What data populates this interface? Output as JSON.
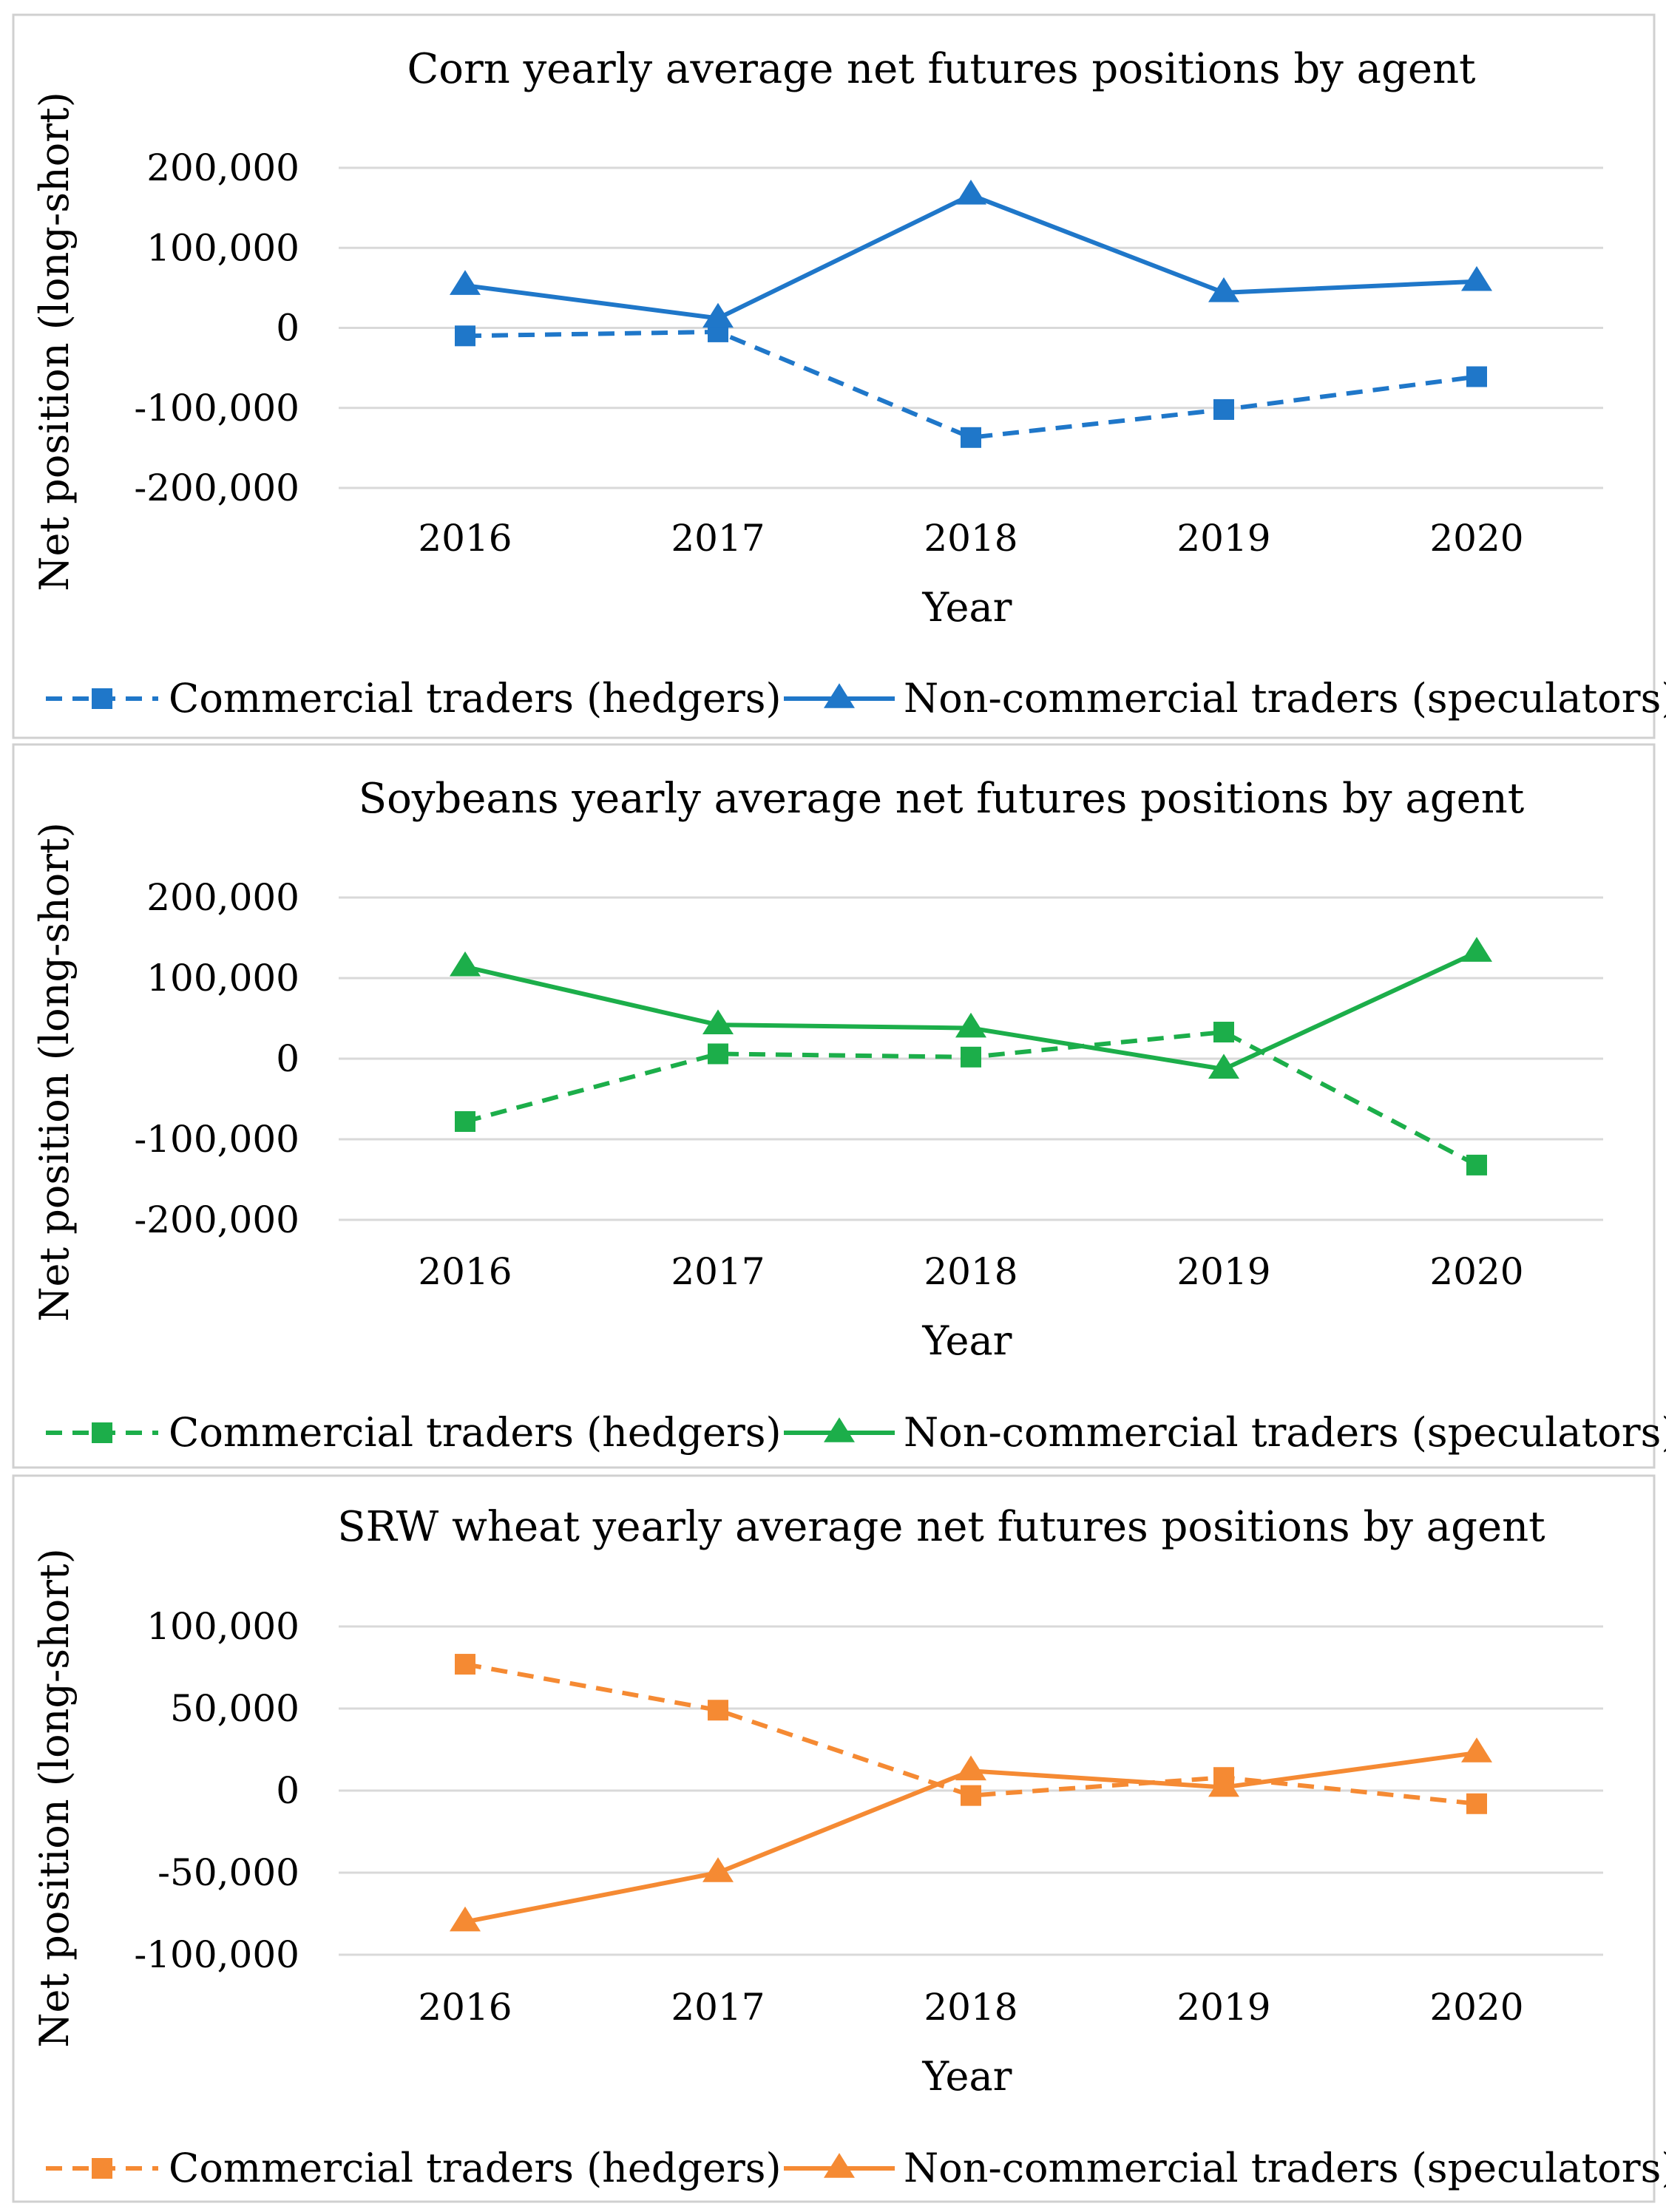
{
  "chart_data": [
    {
      "type": "line",
      "title": "Corn yearly average net futures positions by agent",
      "xlabel": "Year",
      "ylabel": "Net position (long-short)",
      "categories": [
        "2016",
        "2017",
        "2018",
        "2019",
        "2020"
      ],
      "ylim": [
        -200000,
        200000
      ],
      "yticks": [
        200000,
        100000,
        0,
        -100000,
        -200000
      ],
      "ytick_labels": [
        "200,000",
        "100,000",
        "0",
        "-100,000",
        "-200,000"
      ],
      "grid": true,
      "legend_position": "bottom",
      "color": "#1f77c9",
      "series": [
        {
          "name": "Commercial traders (hedgers)",
          "style": "dashed",
          "marker": "square",
          "values": [
            -10000,
            -5000,
            -137000,
            -102000,
            -61000
          ]
        },
        {
          "name": "Non-commercial traders (speculators)",
          "style": "solid",
          "marker": "triangle",
          "values": [
            53000,
            12000,
            166000,
            44000,
            58000
          ]
        }
      ]
    },
    {
      "type": "line",
      "title": "Soybeans yearly average net futures positions by agent",
      "xlabel": "Year",
      "ylabel": "Net position (long-short)",
      "categories": [
        "2016",
        "2017",
        "2018",
        "2019",
        "2020"
      ],
      "ylim": [
        -200000,
        200000
      ],
      "yticks": [
        200000,
        100000,
        0,
        -100000,
        -200000
      ],
      "ytick_labels": [
        "200,000",
        "100,000",
        "0",
        "-100,000",
        "-200,000"
      ],
      "grid": true,
      "legend_position": "bottom",
      "color": "#1cae4a",
      "series": [
        {
          "name": "Commercial traders (hedgers)",
          "style": "dashed",
          "marker": "square",
          "values": [
            -78000,
            6000,
            2000,
            33000,
            -132000
          ]
        },
        {
          "name": "Non-commercial traders (speculators)",
          "style": "solid",
          "marker": "triangle",
          "values": [
            114000,
            42000,
            38000,
            -13000,
            132000
          ]
        }
      ]
    },
    {
      "type": "line",
      "title": "SRW wheat yearly average net futures positions by agent",
      "xlabel": "Year",
      "ylabel": "Net position (long-short)",
      "categories": [
        "2016",
        "2017",
        "2018",
        "2019",
        "2020"
      ],
      "ylim": [
        -100000,
        100000
      ],
      "yticks": [
        100000,
        50000,
        0,
        -50000,
        -100000
      ],
      "ytick_labels": [
        "100,000",
        "50,000",
        "0",
        "-50,000",
        "-100,000"
      ],
      "grid": true,
      "legend_position": "bottom",
      "color": "#f58a33",
      "series": [
        {
          "name": "Commercial traders (hedgers)",
          "style": "dashed",
          "marker": "square",
          "values": [
            77000,
            49000,
            -3000,
            8000,
            -8000
          ]
        },
        {
          "name": "Non-commercial traders (speculators)",
          "style": "solid",
          "marker": "triangle",
          "values": [
            -80000,
            -50000,
            12000,
            2000,
            23000
          ]
        }
      ]
    }
  ]
}
